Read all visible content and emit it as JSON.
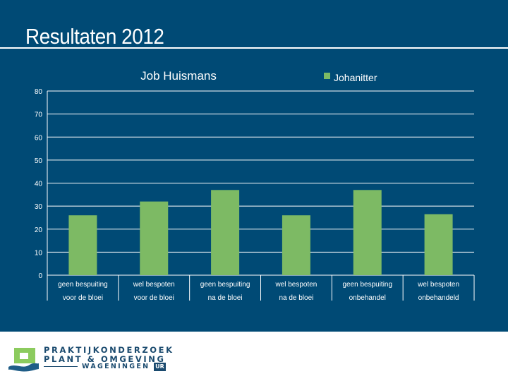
{
  "slide": {
    "title": "Resultaten 2012"
  },
  "logo": {
    "line1": "PRAKTIJKONDERZOEK",
    "line2": "PLANT & OMGEVING",
    "line3": "WAGENINGEN",
    "badge": "UR"
  },
  "colors": {
    "background": "#004a75",
    "bar": "#7dba64",
    "text": "#ffffff"
  },
  "chart_data": {
    "type": "bar",
    "title": "Job Huismans",
    "categories": [
      [
        "geen bespuiting",
        "voor de bloei"
      ],
      [
        "wel bespoten",
        "voor de bloei"
      ],
      [
        "geen bespuiting",
        "na de bloei"
      ],
      [
        "wel bespoten",
        "na de bloei"
      ],
      [
        "geen bespuiting",
        "onbehandel"
      ],
      [
        "wel bespoten",
        "onbehandeld"
      ]
    ],
    "series": [
      {
        "name": "Johanitter",
        "values": [
          26,
          32,
          37,
          26,
          37,
          26.5
        ]
      }
    ],
    "ylim": [
      0,
      80
    ],
    "yticks": [
      0,
      10,
      20,
      30,
      40,
      50,
      60,
      70,
      80
    ],
    "grid": true,
    "legend": "top-right"
  }
}
